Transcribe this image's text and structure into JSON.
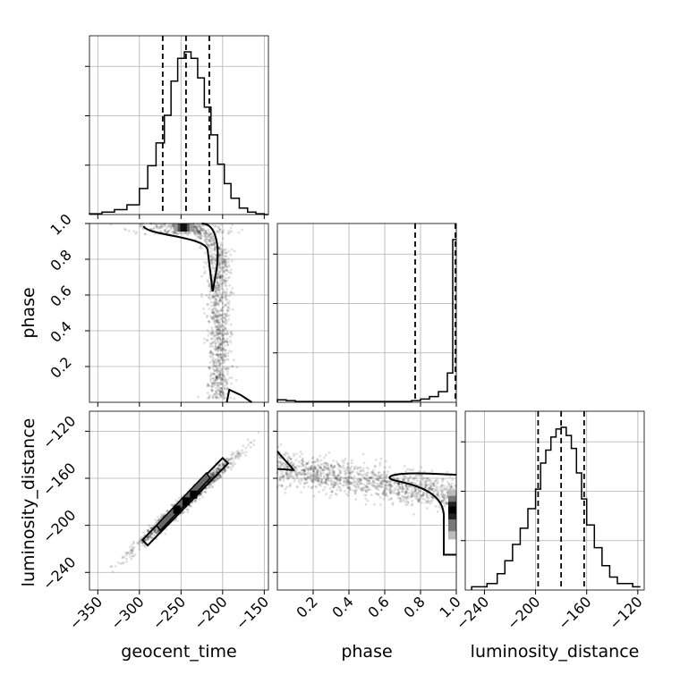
{
  "chart_data": {
    "type": "corner",
    "parameters": [
      "geocent_time",
      "phase",
      "luminosity_distance"
    ],
    "panels": {
      "geocent_time": {
        "xlim": [
          -360,
          -145
        ],
        "xticks": [
          -350,
          -300,
          -250,
          -200,
          -150
        ],
        "xtick_labels": [
          "−350",
          "−300",
          "−250",
          "−200",
          "−150"
        ],
        "quantiles": [
          -272,
          -244,
          -216
        ],
        "hist_bins": [
          -360,
          -345,
          -330,
          -315,
          -300,
          -290,
          -280,
          -270,
          -262,
          -254,
          -246,
          -238,
          -230,
          -222,
          -214,
          -206,
          -198,
          -190,
          -180,
          -170,
          -160,
          -150,
          -145
        ],
        "hist_counts": [
          0.005,
          0.015,
          0.03,
          0.06,
          0.16,
          0.3,
          0.44,
          0.61,
          0.82,
          0.96,
          1.0,
          0.96,
          0.84,
          0.66,
          0.49,
          0.31,
          0.19,
          0.1,
          0.04,
          0.015,
          0.005,
          0.0
        ]
      },
      "phase": {
        "xlim": [
          0.0,
          1.0
        ],
        "ylim": [
          0.0,
          1.0
        ],
        "xticks": [
          0.2,
          0.4,
          0.6,
          0.8,
          1.0
        ],
        "xtick_labels": [
          "0.2",
          "0.4",
          "0.6",
          "0.8",
          "1.0"
        ],
        "yticks": [
          0.2,
          0.4,
          0.6,
          0.8,
          1.0
        ],
        "ytick_labels": [
          "0.2",
          "0.4",
          "0.6",
          "0.8",
          "1.0"
        ],
        "quantiles": [
          0.77,
          0.995
        ],
        "hist_bins": [
          0.0,
          0.05,
          0.1,
          0.15,
          0.2,
          0.25,
          0.3,
          0.35,
          0.4,
          0.45,
          0.5,
          0.55,
          0.6,
          0.65,
          0.7,
          0.75,
          0.8,
          0.85,
          0.9,
          0.95,
          0.98,
          1.0
        ],
        "hist_counts": [
          0.015,
          0.01,
          0.005,
          0.005,
          0.005,
          0.005,
          0.005,
          0.005,
          0.005,
          0.005,
          0.005,
          0.005,
          0.005,
          0.005,
          0.005,
          0.01,
          0.02,
          0.035,
          0.065,
          0.18,
          1.0
        ]
      },
      "luminosity_distance": {
        "xlim": [
          -255,
          -115
        ],
        "ylim": [
          -255,
          -103
        ],
        "xticks": [
          -240,
          -200,
          -160,
          -120
        ],
        "xtick_labels": [
          "−240",
          "−200",
          "−160",
          "−120"
        ],
        "yticks": [
          -120,
          -160,
          -200,
          -240
        ],
        "ytick_labels": [
          "−120",
          "−160",
          "−200",
          "−240"
        ],
        "quantiles": [
          -198,
          -180,
          -162
        ],
        "hist_bins": [
          -250,
          -238,
          -230,
          -224,
          -218,
          -212,
          -206,
          -200,
          -196,
          -192,
          -188,
          -184,
          -180,
          -176,
          -172,
          -168,
          -164,
          -160,
          -154,
          -148,
          -142,
          -136,
          -124,
          -118
        ],
        "hist_counts": [
          0.02,
          0.04,
          0.1,
          0.18,
          0.28,
          0.38,
          0.5,
          0.62,
          0.78,
          0.86,
          0.94,
          0.99,
          1.0,
          0.95,
          0.87,
          0.72,
          0.56,
          0.4,
          0.26,
          0.15,
          0.08,
          0.04,
          0.02
        ]
      }
    }
  }
}
